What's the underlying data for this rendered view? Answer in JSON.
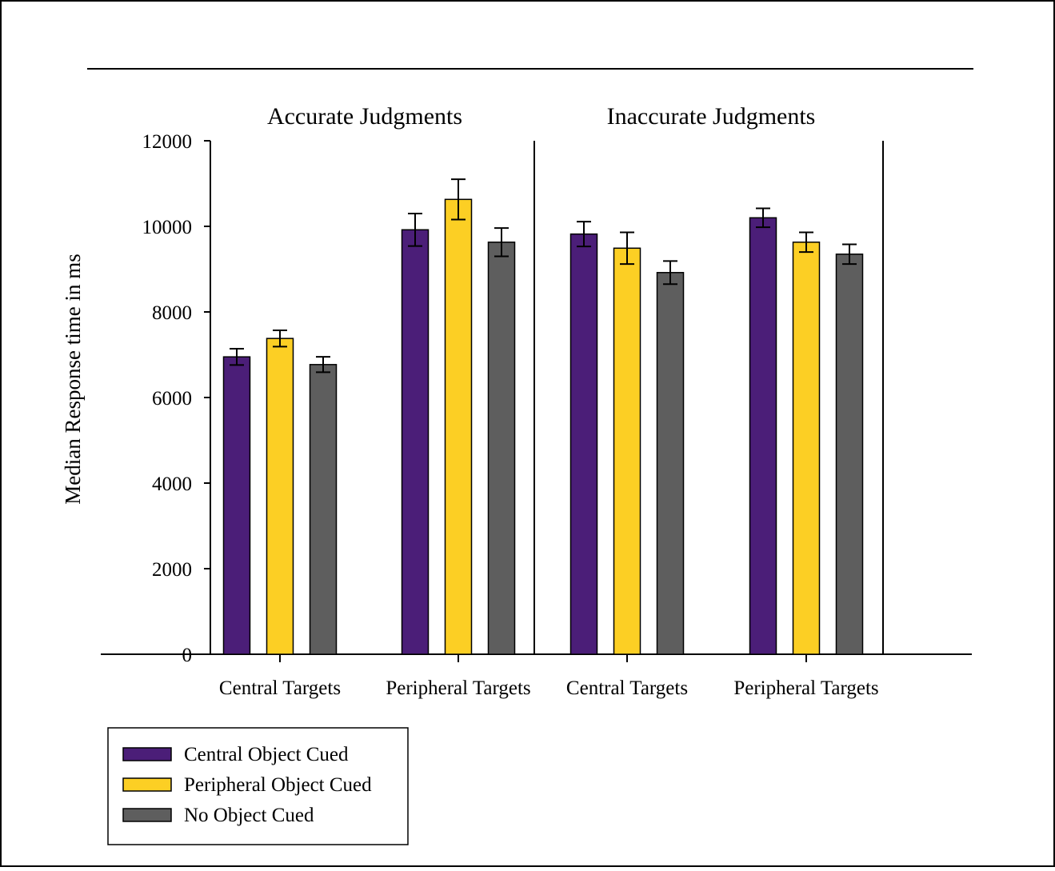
{
  "chart_data": {
    "type": "bar",
    "ylabel": "Median Response time in ms",
    "ylim": [
      0,
      12000
    ],
    "yticks": [
      "0",
      "2000",
      "4000",
      "6000",
      "8000",
      "10000",
      "12000"
    ],
    "grid": false,
    "legend_position": "bottom-left",
    "panels": [
      {
        "title": "Accurate Judgments",
        "categories": [
          "Central Targets",
          "Peripheral Targets"
        ],
        "series": [
          {
            "name": "Central Object Cued",
            "values": [
              6950,
              9920
            ],
            "errors": [
              190,
              380
            ]
          },
          {
            "name": "Peripheral Object Cued",
            "values": [
              7380,
              10630
            ],
            "errors": [
              190,
              470
            ]
          },
          {
            "name": "No Object Cued",
            "values": [
              6770,
              9630
            ],
            "errors": [
              180,
              330
            ]
          }
        ]
      },
      {
        "title": "Inaccurate Judgments",
        "categories": [
          "Central Targets",
          "Peripheral Targets"
        ],
        "series": [
          {
            "name": "Central Object Cued",
            "values": [
              9820,
              10200
            ],
            "errors": [
              290,
              220
            ]
          },
          {
            "name": "Peripheral Object Cued",
            "values": [
              9490,
              9630
            ],
            "errors": [
              370,
              230
            ]
          },
          {
            "name": "No Object Cued",
            "values": [
              8920,
              9350
            ],
            "errors": [
              270,
              230
            ]
          }
        ]
      }
    ],
    "legend": [
      {
        "name": "Central Object Cued",
        "color": "#4b1e78"
      },
      {
        "name": "Peripheral Object Cued",
        "color": "#fccf24"
      },
      {
        "name": "No Object Cued",
        "color": "#5e5e5e"
      }
    ]
  }
}
